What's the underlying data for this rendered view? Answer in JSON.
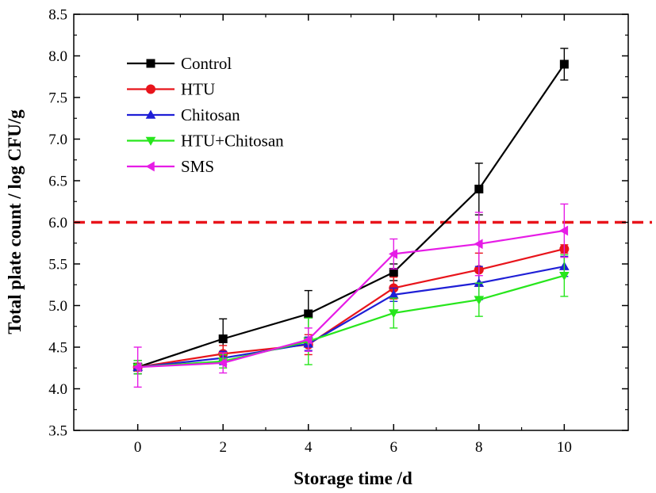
{
  "chart_data": {
    "type": "line",
    "title": "",
    "xlabel": "Storage time /d",
    "ylabel": "Total plate count / log CFU/g",
    "x": [
      0,
      2,
      4,
      6,
      8,
      10
    ],
    "xlim": [
      -1.5,
      11.5
    ],
    "ylim": [
      3.5,
      8.5
    ],
    "x_ticks": [
      "0",
      "2",
      "4",
      "6",
      "8",
      "10"
    ],
    "y_ticks": [
      "3.5",
      "4.0",
      "4.5",
      "5.0",
      "5.5",
      "6.0",
      "6.5",
      "7.0",
      "7.5",
      "8.0",
      "8.5"
    ],
    "grid": false,
    "legend_position": "top-left",
    "threshold": {
      "y": 6.0,
      "color": "#e8141b",
      "style": "dashed"
    },
    "series": [
      {
        "name": "Control",
        "color": "#000000",
        "marker": "square",
        "values": [
          4.26,
          4.6,
          4.9,
          5.4,
          6.4,
          7.9
        ],
        "errors": [
          0.08,
          0.24,
          0.28,
          0.1,
          0.31,
          0.19
        ]
      },
      {
        "name": "HTU",
        "color": "#e8141b",
        "marker": "circle",
        "values": [
          4.26,
          4.42,
          4.53,
          5.21,
          5.43,
          5.68
        ],
        "errors": [
          0.08,
          0.1,
          0.12,
          0.13,
          0.2,
          0.05
        ]
      },
      {
        "name": "Chitosan",
        "color": "#1f1fd6",
        "marker": "triangle-up",
        "values": [
          4.26,
          4.37,
          4.54,
          5.13,
          5.27,
          5.47
        ],
        "errors": [
          0.08,
          0.08,
          0.08,
          0.08,
          0.2,
          0.12
        ]
      },
      {
        "name": "HTU+Chitosan",
        "color": "#27e61c",
        "marker": "triangle-down",
        "values": [
          4.26,
          4.33,
          4.57,
          4.91,
          5.07,
          5.36
        ],
        "errors": [
          0.08,
          0.08,
          0.28,
          0.18,
          0.2,
          0.25
        ]
      },
      {
        "name": "SMS",
        "color": "#e61ce6",
        "marker": "triangle-left",
        "values": [
          4.26,
          4.31,
          4.59,
          5.62,
          5.74,
          5.9
        ],
        "errors": [
          0.24,
          0.12,
          0.14,
          0.18,
          0.38,
          0.32
        ]
      }
    ]
  }
}
